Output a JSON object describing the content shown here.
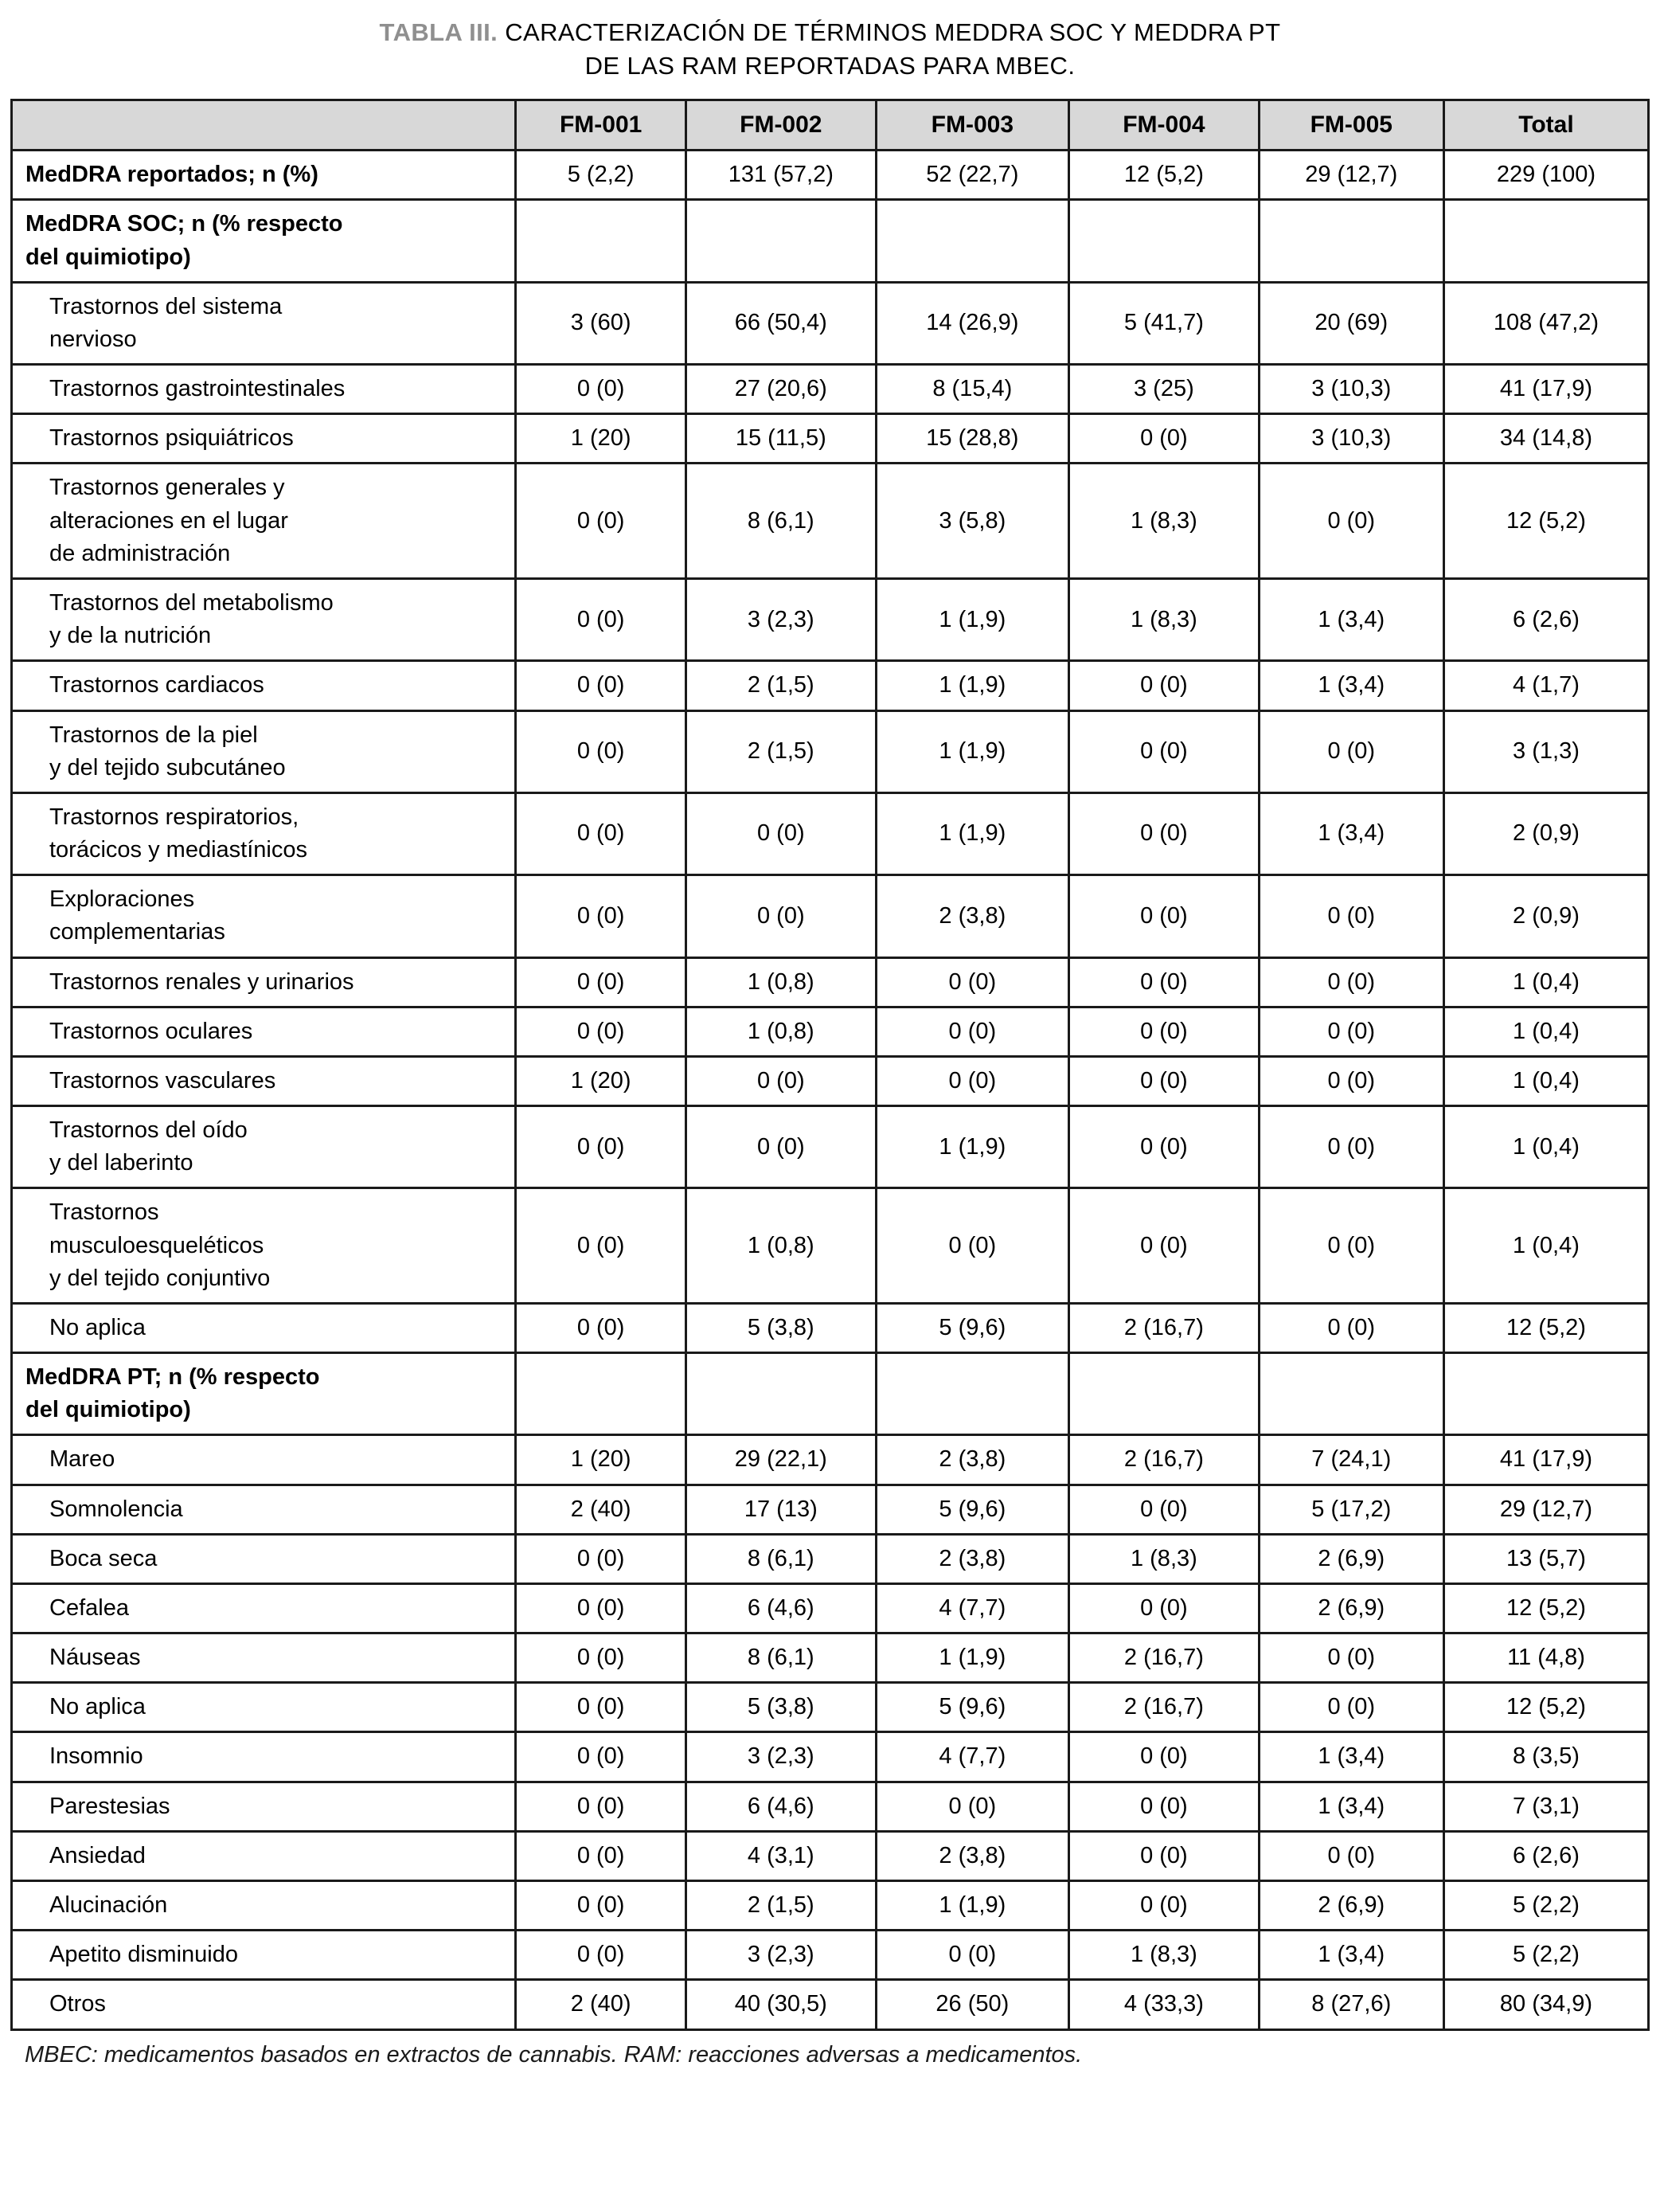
{
  "colors": {
    "header_bg": "#d8d8d8",
    "border": "#1a1a1a",
    "title_tag": "#8f8f8f",
    "page_bg": "#ffffff"
  },
  "title": {
    "tag": "TABLA III.",
    "rest_line1": "CARACTERIZACIÓN DE TÉRMINOS MEDDRA SOC Y MEDDRA PT",
    "line2": "DE LAS RAM REPORTADAS PARA MBEC."
  },
  "footnote": "MBEC: medicamentos basados en extractos de cannabis. RAM: reacciones adversas a medicamentos.",
  "table": {
    "columns": [
      "",
      "FM-001",
      "FM-002",
      "FM-003",
      "FM-004",
      "FM-005",
      "Total"
    ],
    "rows": [
      {
        "style": "bold",
        "label": "MedDRA reportados; n (%)",
        "values": [
          "5 (2,2)",
          "131 (57,2)",
          "52 (22,7)",
          "12 (5,2)",
          "29 (12,7)",
          "229 (100)"
        ]
      },
      {
        "style": "bold",
        "label": "MedDRA SOC; n (% respecto\ndel quimiotipo)",
        "values": [
          "",
          "",
          "",
          "",
          "",
          ""
        ]
      },
      {
        "style": "item",
        "label": "Trastornos del sistema\nnervioso",
        "values": [
          "3 (60)",
          "66 (50,4)",
          "14 (26,9)",
          "5 (41,7)",
          "20 (69)",
          "108 (47,2)"
        ]
      },
      {
        "style": "item",
        "label": "Trastornos gastrointestinales",
        "values": [
          "0 (0)",
          "27 (20,6)",
          "8 (15,4)",
          "3 (25)",
          "3 (10,3)",
          "41 (17,9)"
        ]
      },
      {
        "style": "item",
        "label": "Trastornos psiquiátricos",
        "values": [
          "1 (20)",
          "15 (11,5)",
          "15 (28,8)",
          "0 (0)",
          "3 (10,3)",
          "34 (14,8)"
        ]
      },
      {
        "style": "item",
        "label": "Trastornos generales y\nalteraciones en el lugar\nde administración",
        "values": [
          "0 (0)",
          "8 (6,1)",
          "3 (5,8)",
          "1 (8,3)",
          "0 (0)",
          "12 (5,2)"
        ]
      },
      {
        "style": "item",
        "label": "Trastornos del metabolismo\ny de la nutrición",
        "values": [
          "0 (0)",
          "3 (2,3)",
          "1 (1,9)",
          "1 (8,3)",
          "1 (3,4)",
          "6 (2,6)"
        ]
      },
      {
        "style": "item",
        "label": "Trastornos cardiacos",
        "values": [
          "0 (0)",
          "2 (1,5)",
          "1 (1,9)",
          "0 (0)",
          "1 (3,4)",
          "4 (1,7)"
        ]
      },
      {
        "style": "item",
        "label": "Trastornos de la piel\ny del tejido subcutáneo",
        "values": [
          "0 (0)",
          "2 (1,5)",
          "1 (1,9)",
          "0 (0)",
          "0 (0)",
          "3 (1,3)"
        ]
      },
      {
        "style": "item",
        "label": "Trastornos respiratorios,\ntorácicos y mediastínicos",
        "values": [
          "0 (0)",
          "0 (0)",
          "1 (1,9)",
          "0 (0)",
          "1 (3,4)",
          "2 (0,9)"
        ]
      },
      {
        "style": "item",
        "label": "Exploraciones\ncomplementarias",
        "values": [
          "0 (0)",
          "0 (0)",
          "2 (3,8)",
          "0 (0)",
          "0 (0)",
          "2 (0,9)"
        ]
      },
      {
        "style": "item",
        "label": "Trastornos renales y urinarios",
        "values": [
          "0 (0)",
          "1 (0,8)",
          "0 (0)",
          "0 (0)",
          "0 (0)",
          "1 (0,4)"
        ]
      },
      {
        "style": "item",
        "label": "Trastornos oculares",
        "values": [
          "0 (0)",
          "1 (0,8)",
          "0 (0)",
          "0 (0)",
          "0 (0)",
          "1 (0,4)"
        ]
      },
      {
        "style": "item",
        "label": "Trastornos vasculares",
        "values": [
          "1 (20)",
          "0 (0)",
          "0 (0)",
          "0 (0)",
          "0 (0)",
          "1 (0,4)"
        ]
      },
      {
        "style": "item",
        "label": "Trastornos del oído\ny del laberinto",
        "values": [
          "0 (0)",
          "0 (0)",
          "1 (1,9)",
          "0 (0)",
          "0 (0)",
          "1 (0,4)"
        ]
      },
      {
        "style": "item",
        "label": "Trastornos\nmusculoesqueléticos\ny del tejido conjuntivo",
        "values": [
          "0 (0)",
          "1 (0,8)",
          "0 (0)",
          "0 (0)",
          "0 (0)",
          "1 (0,4)"
        ]
      },
      {
        "style": "item",
        "label": "No aplica",
        "values": [
          "0 (0)",
          "5 (3,8)",
          "5 (9,6)",
          "2 (16,7)",
          "0 (0)",
          "12 (5,2)"
        ]
      },
      {
        "style": "bold",
        "label": "MedDRA PT; n (% respecto\ndel quimiotipo)",
        "values": [
          "",
          "",
          "",
          "",
          "",
          ""
        ]
      },
      {
        "style": "item",
        "label": "Mareo",
        "values": [
          "1 (20)",
          "29 (22,1)",
          "2 (3,8)",
          "2 (16,7)",
          "7 (24,1)",
          "41 (17,9)"
        ]
      },
      {
        "style": "item",
        "label": "Somnolencia",
        "values": [
          "2 (40)",
          "17 (13)",
          "5 (9,6)",
          "0 (0)",
          "5 (17,2)",
          "29 (12,7)"
        ]
      },
      {
        "style": "item",
        "label": "Boca seca",
        "values": [
          "0 (0)",
          "8 (6,1)",
          "2 (3,8)",
          "1 (8,3)",
          "2 (6,9)",
          "13 (5,7)"
        ]
      },
      {
        "style": "item",
        "label": "Cefalea",
        "values": [
          "0 (0)",
          "6 (4,6)",
          "4 (7,7)",
          "0 (0)",
          "2 (6,9)",
          "12 (5,2)"
        ]
      },
      {
        "style": "item",
        "label": "Náuseas",
        "values": [
          "0 (0)",
          "8 (6,1)",
          "1 (1,9)",
          "2 (16,7)",
          "0 (0)",
          "11 (4,8)"
        ]
      },
      {
        "style": "item",
        "label": "No aplica",
        "values": [
          "0 (0)",
          "5 (3,8)",
          "5 (9,6)",
          "2 (16,7)",
          "0 (0)",
          "12 (5,2)"
        ]
      },
      {
        "style": "item",
        "label": "Insomnio",
        "values": [
          "0 (0)",
          "3 (2,3)",
          "4 (7,7)",
          "0 (0)",
          "1 (3,4)",
          "8 (3,5)"
        ]
      },
      {
        "style": "item",
        "label": "Parestesias",
        "values": [
          "0 (0)",
          "6 (4,6)",
          "0 (0)",
          "0 (0)",
          "1 (3,4)",
          "7 (3,1)"
        ]
      },
      {
        "style": "item",
        "label": "Ansiedad",
        "values": [
          "0 (0)",
          "4 (3,1)",
          "2 (3,8)",
          "0 (0)",
          "0 (0)",
          "6 (2,6)"
        ]
      },
      {
        "style": "item",
        "label": "Alucinación",
        "values": [
          "0 (0)",
          "2 (1,5)",
          "1 (1,9)",
          "0 (0)",
          "2 (6,9)",
          "5 (2,2)"
        ]
      },
      {
        "style": "item",
        "label": "Apetito disminuido",
        "values": [
          "0 (0)",
          "3 (2,3)",
          "0 (0)",
          "1 (8,3)",
          "1 (3,4)",
          "5 (2,2)"
        ]
      },
      {
        "style": "item",
        "label": "Otros",
        "values": [
          "2 (40)",
          "40 (30,5)",
          "26 (50)",
          "4 (33,3)",
          "8 (27,6)",
          "80 (34,9)"
        ]
      }
    ]
  }
}
